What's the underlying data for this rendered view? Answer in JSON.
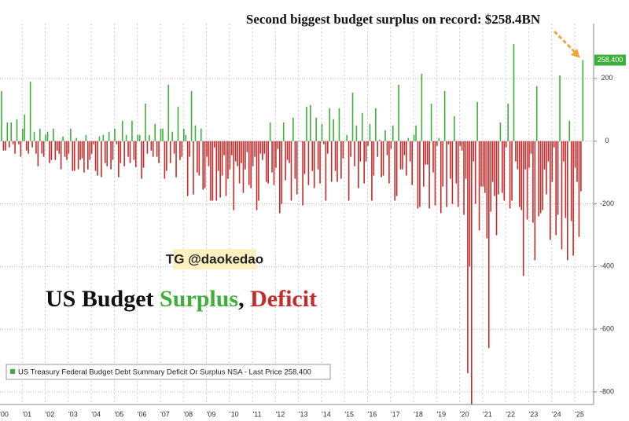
{
  "chart_data": {
    "type": "bar",
    "annotation": "Second biggest budget surplus on record: $258.4BN",
    "watermark": "TG @daokedao",
    "title_parts": [
      "US Budget",
      "Surplus",
      ",",
      "Deficit"
    ],
    "legend_text": "US Treasury Federal Budget Debt Summary Deficit Or Surplus NSA - Last Price 258.400",
    "last_price_label": "258.400",
    "positive_color": "#3fae3a",
    "negative_color": "#c42b2b",
    "ylim": [
      -840,
      375
    ],
    "yticks": [
      -800,
      -600,
      -400,
      -200,
      0,
      200
    ],
    "grid": true,
    "categories": [
      "'00",
      null,
      null,
      null,
      null,
      null,
      null,
      null,
      null,
      null,
      null,
      null,
      "'01",
      null,
      null,
      null,
      null,
      null,
      null,
      null,
      null,
      null,
      null,
      null,
      "'02",
      null,
      null,
      null,
      null,
      null,
      null,
      null,
      null,
      null,
      null,
      null,
      "'03",
      null,
      null,
      null,
      null,
      null,
      null,
      null,
      null,
      null,
      null,
      null,
      "'04",
      null,
      null,
      null,
      null,
      null,
      null,
      null,
      null,
      null,
      null,
      null,
      "'05",
      null,
      null,
      null,
      null,
      null,
      null,
      null,
      null,
      null,
      null,
      null,
      "'06",
      null,
      null,
      null,
      null,
      null,
      null,
      null,
      null,
      null,
      null,
      null,
      "'07",
      null,
      null,
      null,
      null,
      null,
      null,
      null,
      null,
      null,
      null,
      null,
      "'08",
      null,
      null,
      null,
      null,
      null,
      null,
      null,
      null,
      null,
      null,
      null,
      "'09",
      null,
      null,
      null,
      null,
      null,
      null,
      null,
      null,
      null,
      null,
      null,
      "'10",
      null,
      null,
      null,
      null,
      null,
      null,
      null,
      null,
      null,
      null,
      null,
      "'11",
      null,
      null,
      null,
      null,
      null,
      null,
      null,
      null,
      null,
      null,
      null,
      "'12",
      null,
      null,
      null,
      null,
      null,
      null,
      null,
      null,
      null,
      null,
      null,
      "'13",
      null,
      null,
      null,
      null,
      null,
      null,
      null,
      null,
      null,
      null,
      null,
      "'14",
      null,
      null,
      null,
      null,
      null,
      null,
      null,
      null,
      null,
      null,
      null,
      "'15",
      null,
      null,
      null,
      null,
      null,
      null,
      null,
      null,
      null,
      null,
      null,
      "'16",
      null,
      null,
      null,
      null,
      null,
      null,
      null,
      null,
      null,
      null,
      null,
      "'17",
      null,
      null,
      null,
      null,
      null,
      null,
      null,
      null,
      null,
      null,
      null,
      "'18",
      null,
      null,
      null,
      null,
      null,
      null,
      null,
      null,
      null,
      null,
      null,
      "'19",
      null,
      null,
      null,
      null,
      null,
      null,
      null,
      null,
      null,
      null,
      null,
      "'20",
      null,
      null,
      null,
      null,
      null,
      null,
      null,
      null,
      null,
      null,
      null,
      "'21",
      null,
      null,
      null,
      null,
      null,
      null,
      null,
      null,
      null,
      null,
      null,
      "'22",
      null,
      null,
      null,
      null,
      null,
      null,
      null,
      null,
      null,
      null,
      null,
      "'23",
      null,
      null,
      null,
      null,
      null,
      null,
      null,
      null,
      null,
      null,
      null,
      "'24",
      null,
      null,
      null,
      null,
      null,
      null,
      null,
      null,
      null,
      null,
      null,
      "'25",
      null,
      null,
      null
    ],
    "values": [
      160,
      -30,
      -30,
      60,
      -20,
      60,
      -10,
      -40,
      70,
      -10,
      -50,
      40,
      85,
      -30,
      -40,
      190,
      -20,
      30,
      -40,
      -80,
      40,
      -40,
      -50,
      20,
      30,
      -70,
      -60,
      40,
      -60,
      -30,
      -40,
      -90,
      15,
      -50,
      -60,
      -40,
      40,
      -95,
      -95,
      10,
      -90,
      -60,
      -55,
      -100,
      20,
      -90,
      -60,
      -40,
      -10,
      -95,
      -110,
      15,
      -115,
      20,
      -70,
      -80,
      30,
      -90,
      -60,
      40,
      -10,
      -115,
      -70,
      65,
      -80,
      20,
      -50,
      -70,
      65,
      -60,
      -83,
      20,
      20,
      -120,
      -85,
      120,
      -40,
      20,
      -30,
      -50,
      55,
      -50,
      -70,
      40,
      40,
      -120,
      -95,
      180,
      -70,
      30,
      -40,
      -115,
      110,
      -60,
      -50,
      40,
      20,
      -175,
      -50,
      160,
      -170,
      50,
      -100,
      -110,
      40,
      -155,
      -150,
      -50,
      -80,
      -190,
      -190,
      -20,
      -190,
      -95,
      -180,
      -110,
      -45,
      -175,
      -120,
      -90,
      -45,
      -220,
      -65,
      -80,
      -135,
      -70,
      -165,
      -90,
      -35,
      -140,
      -150,
      -80,
      -50,
      -220,
      -190,
      -40,
      -60,
      -40,
      -130,
      -135,
      60,
      -100,
      -140,
      -85,
      -25,
      -230,
      -200,
      60,
      -125,
      -60,
      -70,
      -190,
      75,
      -120,
      -170,
      -1,
      -2,
      -205,
      -105,
      110,
      -140,
      115,
      -95,
      -150,
      75,
      -90,
      -135,
      55,
      -10,
      -190,
      -40,
      105,
      -130,
      70,
      -95,
      -130,
      105,
      -120,
      -55,
      1,
      20,
      -190,
      -50,
      155,
      -80,
      50,
      -150,
      -65,
      90,
      -135,
      -65,
      -15,
      55,
      -190,
      -110,
      105,
      -50,
      5,
      -115,
      -110,
      35,
      -45,
      -135,
      -25,
      50,
      -190,
      -175,
      180,
      -90,
      -90,
      -45,
      -110,
      10,
      -65,
      -140,
      20,
      50,
      -215,
      -210,
      215,
      -145,
      -75,
      -75,
      -215,
      120,
      -100,
      -205,
      -15,
      10,
      -230,
      -145,
      160,
      -210,
      -10,
      -120,
      -200,
      80,
      -135,
      -210,
      -15,
      -30,
      -235,
      -120,
      -740,
      -400,
      -865,
      -65,
      -200,
      125,
      -285,
      -145,
      -145,
      -165,
      -310,
      -660,
      -225,
      -130,
      -175,
      -300,
      -170,
      60,
      -165,
      -190,
      -20,
      120,
      -215,
      -190,
      310,
      -65,
      -90,
      -210,
      -220,
      -430,
      -90,
      -250,
      -85,
      -40,
      -260,
      -380,
      175,
      -240,
      -230,
      -220,
      -90,
      -170,
      -65,
      -315,
      -130,
      -20,
      -300,
      -235,
      210,
      -345,
      -65,
      -245,
      -380,
      65,
      -255,
      -365,
      -85,
      -130,
      -305,
      -160,
      258.4
    ]
  }
}
